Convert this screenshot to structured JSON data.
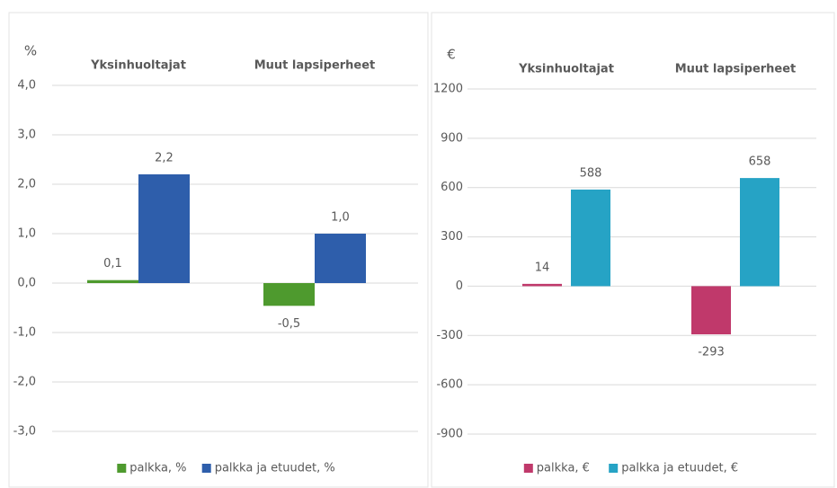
{
  "chart_data": [
    {
      "type": "bar",
      "y_label": "%",
      "categories": [
        "Yksinhuoltajat",
        "Muut lapsiperheet"
      ],
      "series": [
        {
          "name": "palkka, %",
          "color": "#4e9a2e",
          "values": [
            0.06,
            -0.46
          ],
          "value_labels": [
            "0,1",
            "-0,5"
          ]
        },
        {
          "name": "palkka ja etuudet, %",
          "color": "#2e5eab",
          "values": [
            2.2,
            1.0
          ],
          "value_labels": [
            "2,2",
            "1,0"
          ]
        }
      ],
      "ylim": [
        -3,
        4
      ],
      "yticks": [
        {
          "value": 4,
          "label": "4,0"
        },
        {
          "value": 3,
          "label": "3,0"
        },
        {
          "value": 2,
          "label": "2,0"
        },
        {
          "value": 1,
          "label": "1,0"
        },
        {
          "value": 0,
          "label": "0,0"
        },
        {
          "value": -1,
          "label": "-1,0"
        },
        {
          "value": -2,
          "label": "-2,0"
        },
        {
          "value": -3,
          "label": "-3,0"
        }
      ],
      "grid": true,
      "legend": "bottom"
    },
    {
      "type": "bar",
      "y_label": "€",
      "categories": [
        "Yksinhuoltajat",
        "Muut lapsiperheet"
      ],
      "series": [
        {
          "name": "palkka, €",
          "color": "#c0396b",
          "values": [
            14,
            -293
          ]
        },
        {
          "name": "palkka ja etuudet, €",
          "color": "#26a3c5",
          "values": [
            588,
            658
          ]
        }
      ],
      "ylim": [
        -900,
        1200
      ],
      "yticks": [
        1200,
        900,
        600,
        300,
        0,
        -300,
        -600,
        -900
      ],
      "grid": true,
      "legend": "bottom"
    }
  ]
}
